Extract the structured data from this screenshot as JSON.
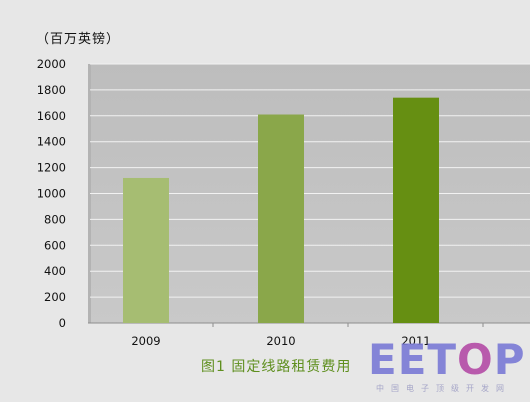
{
  "chart_data": {
    "type": "bar",
    "unit_label": "（百万英镑）",
    "caption": "图1 固定线路租赁费用",
    "categories": [
      "2009",
      "2010",
      "2011"
    ],
    "values": [
      1120,
      1610,
      1740
    ],
    "ylim": [
      0,
      2000
    ],
    "yticks": [
      "0",
      "200",
      "400",
      "600",
      "800",
      "1000",
      "1200",
      "1400",
      "1600",
      "1800",
      "2000"
    ],
    "grid": true,
    "legend": "none",
    "colors": [
      "#a6bd72",
      "#8aa74a",
      "#668f12"
    ],
    "plot_background": "#c9c9c9"
  },
  "watermark": {
    "logo_text_a": "EET",
    "logo_text_o": "O",
    "logo_text_b": "P",
    "subtitle": "中国电子顶级开发网"
  }
}
